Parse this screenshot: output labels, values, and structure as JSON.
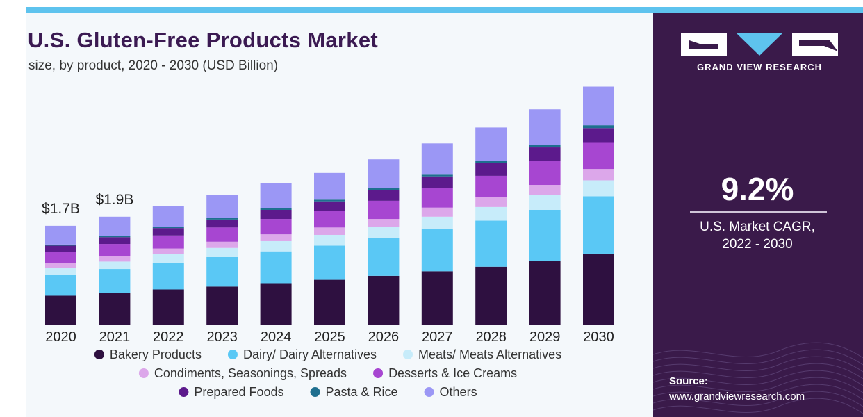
{
  "header": {
    "title": "U.S. Gluten-Free Products Market",
    "subtitle": "size, by product, 2020 - 2030 (USD Billion)"
  },
  "brand": {
    "name": "GRAND VIEW RESEARCH",
    "logo_icon": "grand-view-research-logo"
  },
  "stat": {
    "value": "9.2%",
    "label_line1": "U.S. Market CAGR,",
    "label_line2": "2022 - 2030"
  },
  "source": {
    "label": "Source:",
    "url": "www.grandviewresearch.com"
  },
  "colors": {
    "panel_dark": "#3a1a4a",
    "accent_blue": "#5ec3ee",
    "title_purple": "#3b1a52"
  },
  "chart_data": {
    "type": "bar",
    "stacked": true,
    "categories": [
      "2020",
      "2021",
      "2022",
      "2023",
      "2024",
      "2025",
      "2026",
      "2027",
      "2028",
      "2029",
      "2030"
    ],
    "ylim": [
      0,
      4.5
    ],
    "grid": false,
    "legend_position": "bottom",
    "annotations": [
      {
        "category": "2020",
        "text": "$1.7B"
      },
      {
        "category": "2021",
        "text": "$1.9B"
      }
    ],
    "series": [
      {
        "name": "Bakery Products",
        "color": "#2e1040",
        "values": [
          0.52,
          0.57,
          0.63,
          0.68,
          0.74,
          0.8,
          0.87,
          0.95,
          1.03,
          1.13,
          1.26
        ]
      },
      {
        "name": "Dairy/ Dairy Alternatives",
        "color": "#5ac8f5",
        "values": [
          0.37,
          0.42,
          0.47,
          0.52,
          0.56,
          0.6,
          0.66,
          0.74,
          0.81,
          0.9,
          1.01
        ]
      },
      {
        "name": "Meats/ Meats Alternatives",
        "color": "#c7ecfa",
        "values": [
          0.12,
          0.13,
          0.15,
          0.16,
          0.18,
          0.19,
          0.2,
          0.22,
          0.24,
          0.26,
          0.28
        ]
      },
      {
        "name": "Condiments, Seasonings, Spreads",
        "color": "#dca7ea",
        "values": [
          0.09,
          0.1,
          0.1,
          0.11,
          0.12,
          0.13,
          0.14,
          0.16,
          0.17,
          0.18,
          0.2
        ]
      },
      {
        "name": "Desserts & Ice Creams",
        "color": "#a746d1",
        "values": [
          0.19,
          0.21,
          0.23,
          0.25,
          0.27,
          0.29,
          0.32,
          0.35,
          0.38,
          0.42,
          0.46
        ]
      },
      {
        "name": "Prepared Foods",
        "color": "#5c1a8c",
        "values": [
          0.11,
          0.12,
          0.13,
          0.14,
          0.16,
          0.17,
          0.19,
          0.2,
          0.22,
          0.24,
          0.26
        ]
      },
      {
        "name": "Pasta & Rice",
        "color": "#1e6f8f",
        "values": [
          0.02,
          0.02,
          0.02,
          0.03,
          0.03,
          0.03,
          0.03,
          0.03,
          0.04,
          0.04,
          0.05
        ]
      },
      {
        "name": "Others",
        "color": "#9b97f5",
        "values": [
          0.33,
          0.34,
          0.37,
          0.4,
          0.44,
          0.47,
          0.51,
          0.55,
          0.59,
          0.63,
          0.68
        ]
      }
    ]
  }
}
